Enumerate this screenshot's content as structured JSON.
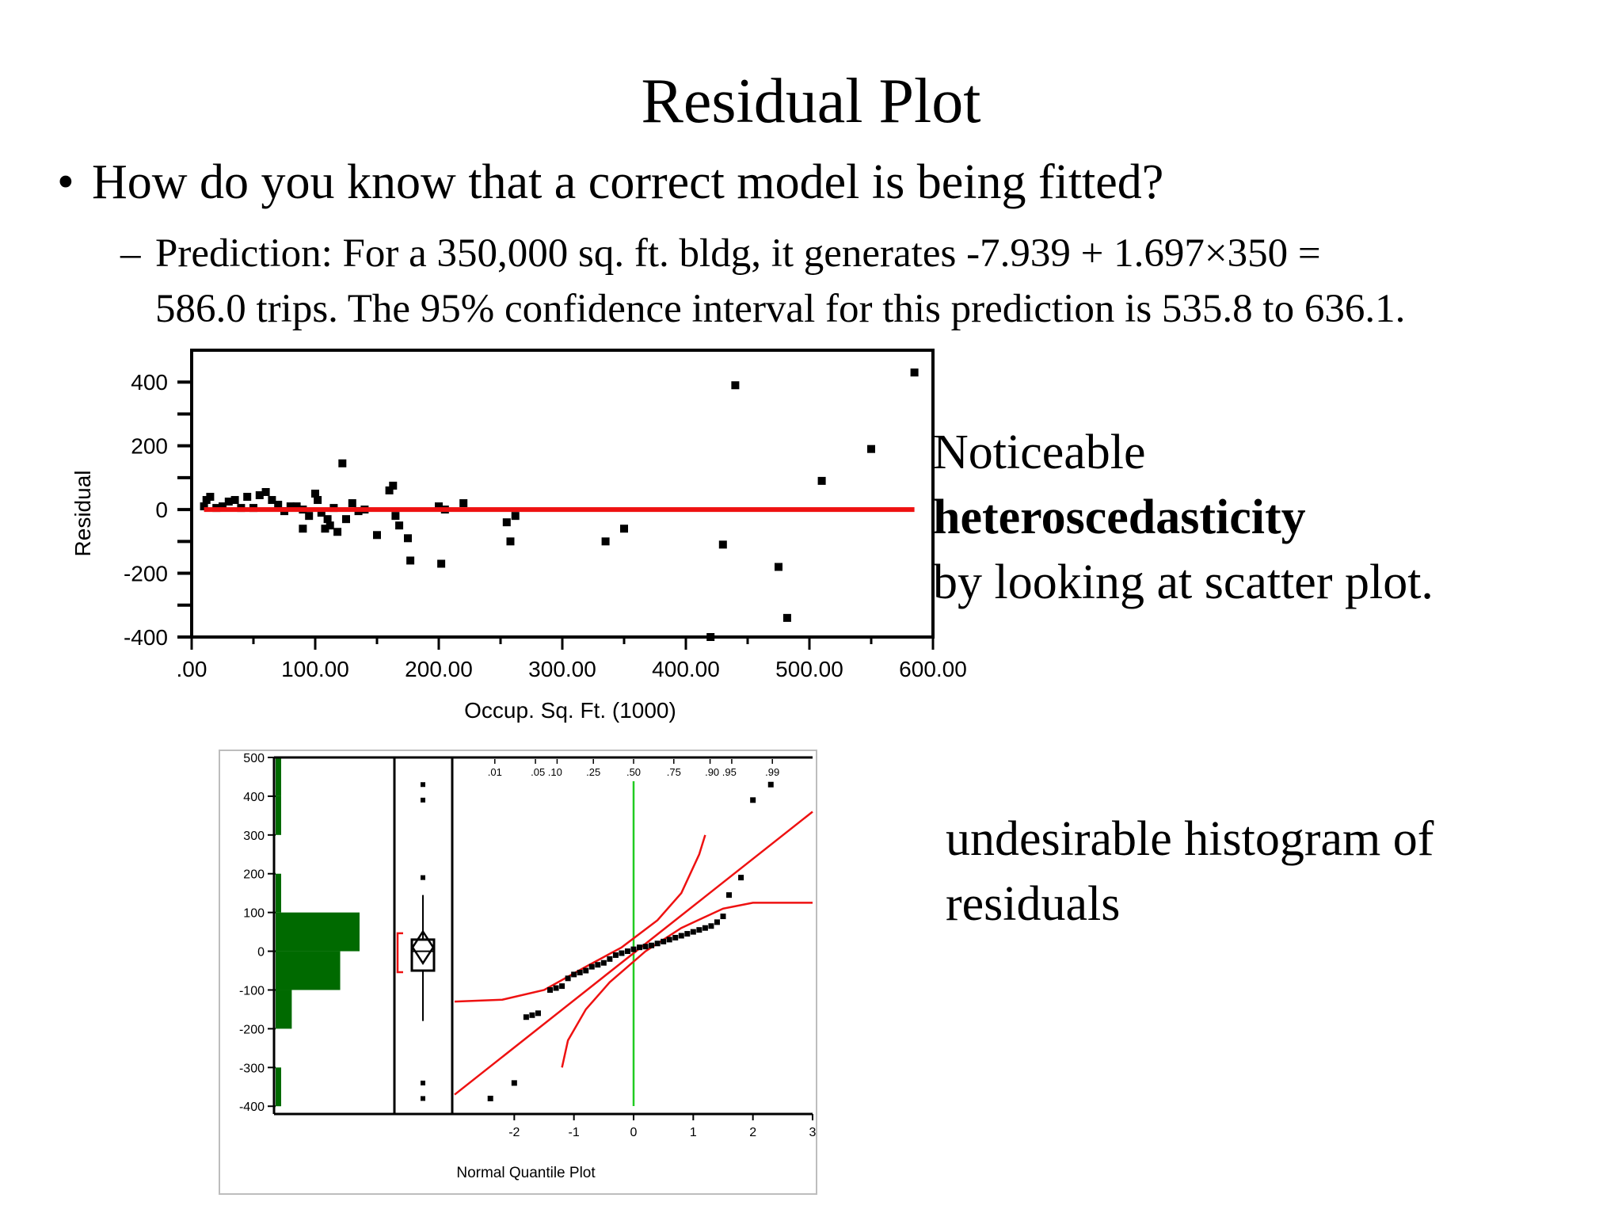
{
  "slide": {
    "title": "Residual Plot",
    "bullet_symbol": "•",
    "bullet": "How do you know that a correct model is being fitted?",
    "dash_symbol": "–",
    "sub_line1": "Prediction: For a 350,000 sq. ft. bldg, it generates -7.939 + 1.697×350 =",
    "sub_line2": "586.0 trips. The 95% confidence interval for this prediction is 535.8 to 636.1.",
    "note1_line1": "Noticeable",
    "note1_line2": "heteroscedasticity",
    "note1_line3": "by looking at scatter plot.",
    "note2_line1": "undesirable histogram of",
    "note2_line2": "residuals"
  },
  "colors": {
    "fit_line": "#ee1111",
    "histogram": "#006a00",
    "normal_line": "#22cc22",
    "points": "#000000"
  },
  "chart_data": [
    {
      "type": "scatter",
      "xlabel": "Occup. Sq. Ft. (1000)",
      "ylabel": "Residual",
      "x_ticks": [
        ".00",
        "100.00",
        "200.00",
        "300.00",
        "400.00",
        "500.00",
        "600.00"
      ],
      "y_ticks": [
        "400",
        "200",
        "0",
        "-200",
        "-400"
      ],
      "xlim": [
        0,
        600
      ],
      "ylim": [
        -400,
        500
      ],
      "fit_line": {
        "x": [
          10,
          585
        ],
        "y": [
          0,
          0
        ]
      },
      "points": [
        [
          10,
          10
        ],
        [
          12,
          30
        ],
        [
          15,
          40
        ],
        [
          20,
          5
        ],
        [
          25,
          10
        ],
        [
          30,
          25
        ],
        [
          35,
          30
        ],
        [
          40,
          5
        ],
        [
          45,
          40
        ],
        [
          50,
          5
        ],
        [
          55,
          45
        ],
        [
          60,
          55
        ],
        [
          65,
          30
        ],
        [
          70,
          15
        ],
        [
          75,
          -5
        ],
        [
          80,
          10
        ],
        [
          85,
          10
        ],
        [
          90,
          0
        ],
        [
          90,
          -60
        ],
        [
          95,
          -20
        ],
        [
          100,
          50
        ],
        [
          102,
          30
        ],
        [
          105,
          -10
        ],
        [
          108,
          -60
        ],
        [
          110,
          -30
        ],
        [
          112,
          -50
        ],
        [
          115,
          5
        ],
        [
          118,
          -70
        ],
        [
          122,
          145
        ],
        [
          125,
          -30
        ],
        [
          130,
          20
        ],
        [
          135,
          -5
        ],
        [
          140,
          0
        ],
        [
          150,
          -80
        ],
        [
          160,
          60
        ],
        [
          163,
          75
        ],
        [
          165,
          -20
        ],
        [
          168,
          -50
        ],
        [
          175,
          -90
        ],
        [
          177,
          -160
        ],
        [
          200,
          10
        ],
        [
          202,
          -170
        ],
        [
          205,
          0
        ],
        [
          220,
          20
        ],
        [
          255,
          -40
        ],
        [
          258,
          -100
        ],
        [
          262,
          -20
        ],
        [
          335,
          -100
        ],
        [
          350,
          -60
        ],
        [
          420,
          -400
        ],
        [
          430,
          -110
        ],
        [
          440,
          390
        ],
        [
          475,
          -180
        ],
        [
          482,
          -340
        ],
        [
          510,
          90
        ],
        [
          550,
          190
        ],
        [
          585,
          430
        ]
      ]
    },
    {
      "type": "bar",
      "xlabel": "Normal Quantile Plot",
      "y_ticks": [
        "500",
        "400",
        "300",
        "200",
        "100",
        "0",
        "-100",
        "-200",
        "-300",
        "-400"
      ],
      "quantile_ticks": [
        ".01",
        ".05 .10",
        ".25",
        ".50",
        ".75",
        ".90 .95",
        ".99"
      ],
      "quantile_axis_ticks": [
        "-2",
        "-1",
        "0",
        "1",
        "2",
        "3"
      ],
      "histogram_bins": [
        {
          "from": 400,
          "to": 500,
          "count": 1
        },
        {
          "from": 300,
          "to": 400,
          "count": 1
        },
        {
          "from": 200,
          "to": 300,
          "count": 0
        },
        {
          "from": 100,
          "to": 200,
          "count": 1
        },
        {
          "from": 0,
          "to": 100,
          "count": 26
        },
        {
          "from": -100,
          "to": 0,
          "count": 20
        },
        {
          "from": -200,
          "to": -100,
          "count": 5
        },
        {
          "from": -300,
          "to": -200,
          "count": 0
        },
        {
          "from": -400,
          "to": -300,
          "count": 1
        }
      ],
      "histogram_max": 26,
      "outliers": [
        430,
        390,
        190,
        -340,
        -380
      ],
      "box": {
        "q1": -50,
        "median": 0,
        "q3": 30,
        "mean": 10,
        "whisker_low": -180,
        "whisker_high": 145
      },
      "quantile_points": [
        [
          -2.4,
          -380
        ],
        [
          -2.0,
          -340
        ],
        [
          -1.8,
          -170
        ],
        [
          -1.7,
          -165
        ],
        [
          -1.6,
          -160
        ],
        [
          -1.4,
          -100
        ],
        [
          -1.3,
          -95
        ],
        [
          -1.2,
          -90
        ],
        [
          -1.1,
          -70
        ],
        [
          -1.0,
          -60
        ],
        [
          -0.9,
          -55
        ],
        [
          -0.8,
          -50
        ],
        [
          -0.7,
          -40
        ],
        [
          -0.6,
          -35
        ],
        [
          -0.5,
          -30
        ],
        [
          -0.4,
          -20
        ],
        [
          -0.3,
          -10
        ],
        [
          -0.2,
          -5
        ],
        [
          -0.1,
          0
        ],
        [
          0.0,
          5
        ],
        [
          0.1,
          10
        ],
        [
          0.2,
          12
        ],
        [
          0.3,
          15
        ],
        [
          0.4,
          20
        ],
        [
          0.5,
          25
        ],
        [
          0.6,
          30
        ],
        [
          0.7,
          35
        ],
        [
          0.8,
          40
        ],
        [
          0.9,
          45
        ],
        [
          1.0,
          50
        ],
        [
          1.1,
          55
        ],
        [
          1.2,
          60
        ],
        [
          1.3,
          65
        ],
        [
          1.4,
          75
        ],
        [
          1.5,
          90
        ],
        [
          1.6,
          145
        ],
        [
          1.8,
          190
        ],
        [
          2.0,
          390
        ],
        [
          2.3,
          430
        ]
      ],
      "normal_line": {
        "x": [
          -3,
          3
        ],
        "y": [
          -370,
          360
        ]
      },
      "conf_upper": [
        [
          -3,
          -130
        ],
        [
          -2.2,
          -125
        ],
        [
          -1.5,
          -100
        ],
        [
          -0.8,
          -40
        ],
        [
          -0.2,
          10
        ],
        [
          0.4,
          80
        ],
        [
          0.8,
          150
        ],
        [
          1.1,
          250
        ],
        [
          1.2,
          300
        ]
      ],
      "conf_lower": [
        [
          -1.2,
          -300
        ],
        [
          -1.1,
          -230
        ],
        [
          -0.8,
          -150
        ],
        [
          -0.4,
          -80
        ],
        [
          0.2,
          0
        ],
        [
          0.8,
          60
        ],
        [
          1.5,
          110
        ],
        [
          2.0,
          125
        ],
        [
          3,
          125
        ]
      ]
    }
  ]
}
